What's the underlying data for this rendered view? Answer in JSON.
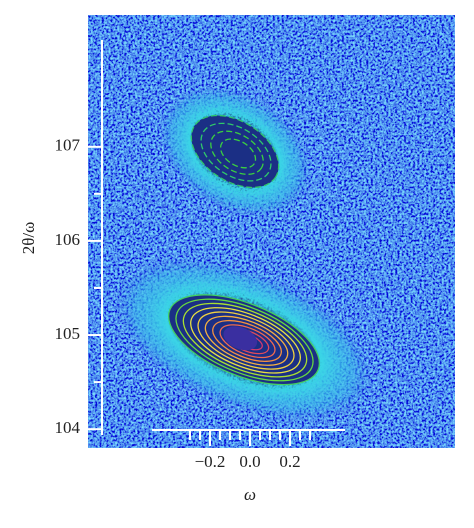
{
  "chart_data": {
    "type": "contour",
    "xlabel": "ω",
    "ylabel": "2θ/ω",
    "xlim": [
      -0.81,
      1.025
    ],
    "ylim": [
      103.8,
      108.4
    ],
    "xticks": [
      {
        "value": -0.2,
        "label": "−0.2"
      },
      {
        "value": 0,
        "label": "0.0"
      },
      0.2
    ],
    "xminorticks": [
      -0.3,
      -0.25,
      -0.15,
      -0.1,
      -0.05,
      0.05,
      0.1,
      0.15,
      0.25,
      0.3
    ],
    "yticks": [
      104,
      105,
      106,
      107
    ],
    "yminorticks": [
      104.5,
      105.5,
      106.5
    ],
    "peaks": [
      {
        "x": -0.075,
        "y": 106.95
      },
      {
        "x": -0.03,
        "y": 104.95
      }
    ]
  }
}
